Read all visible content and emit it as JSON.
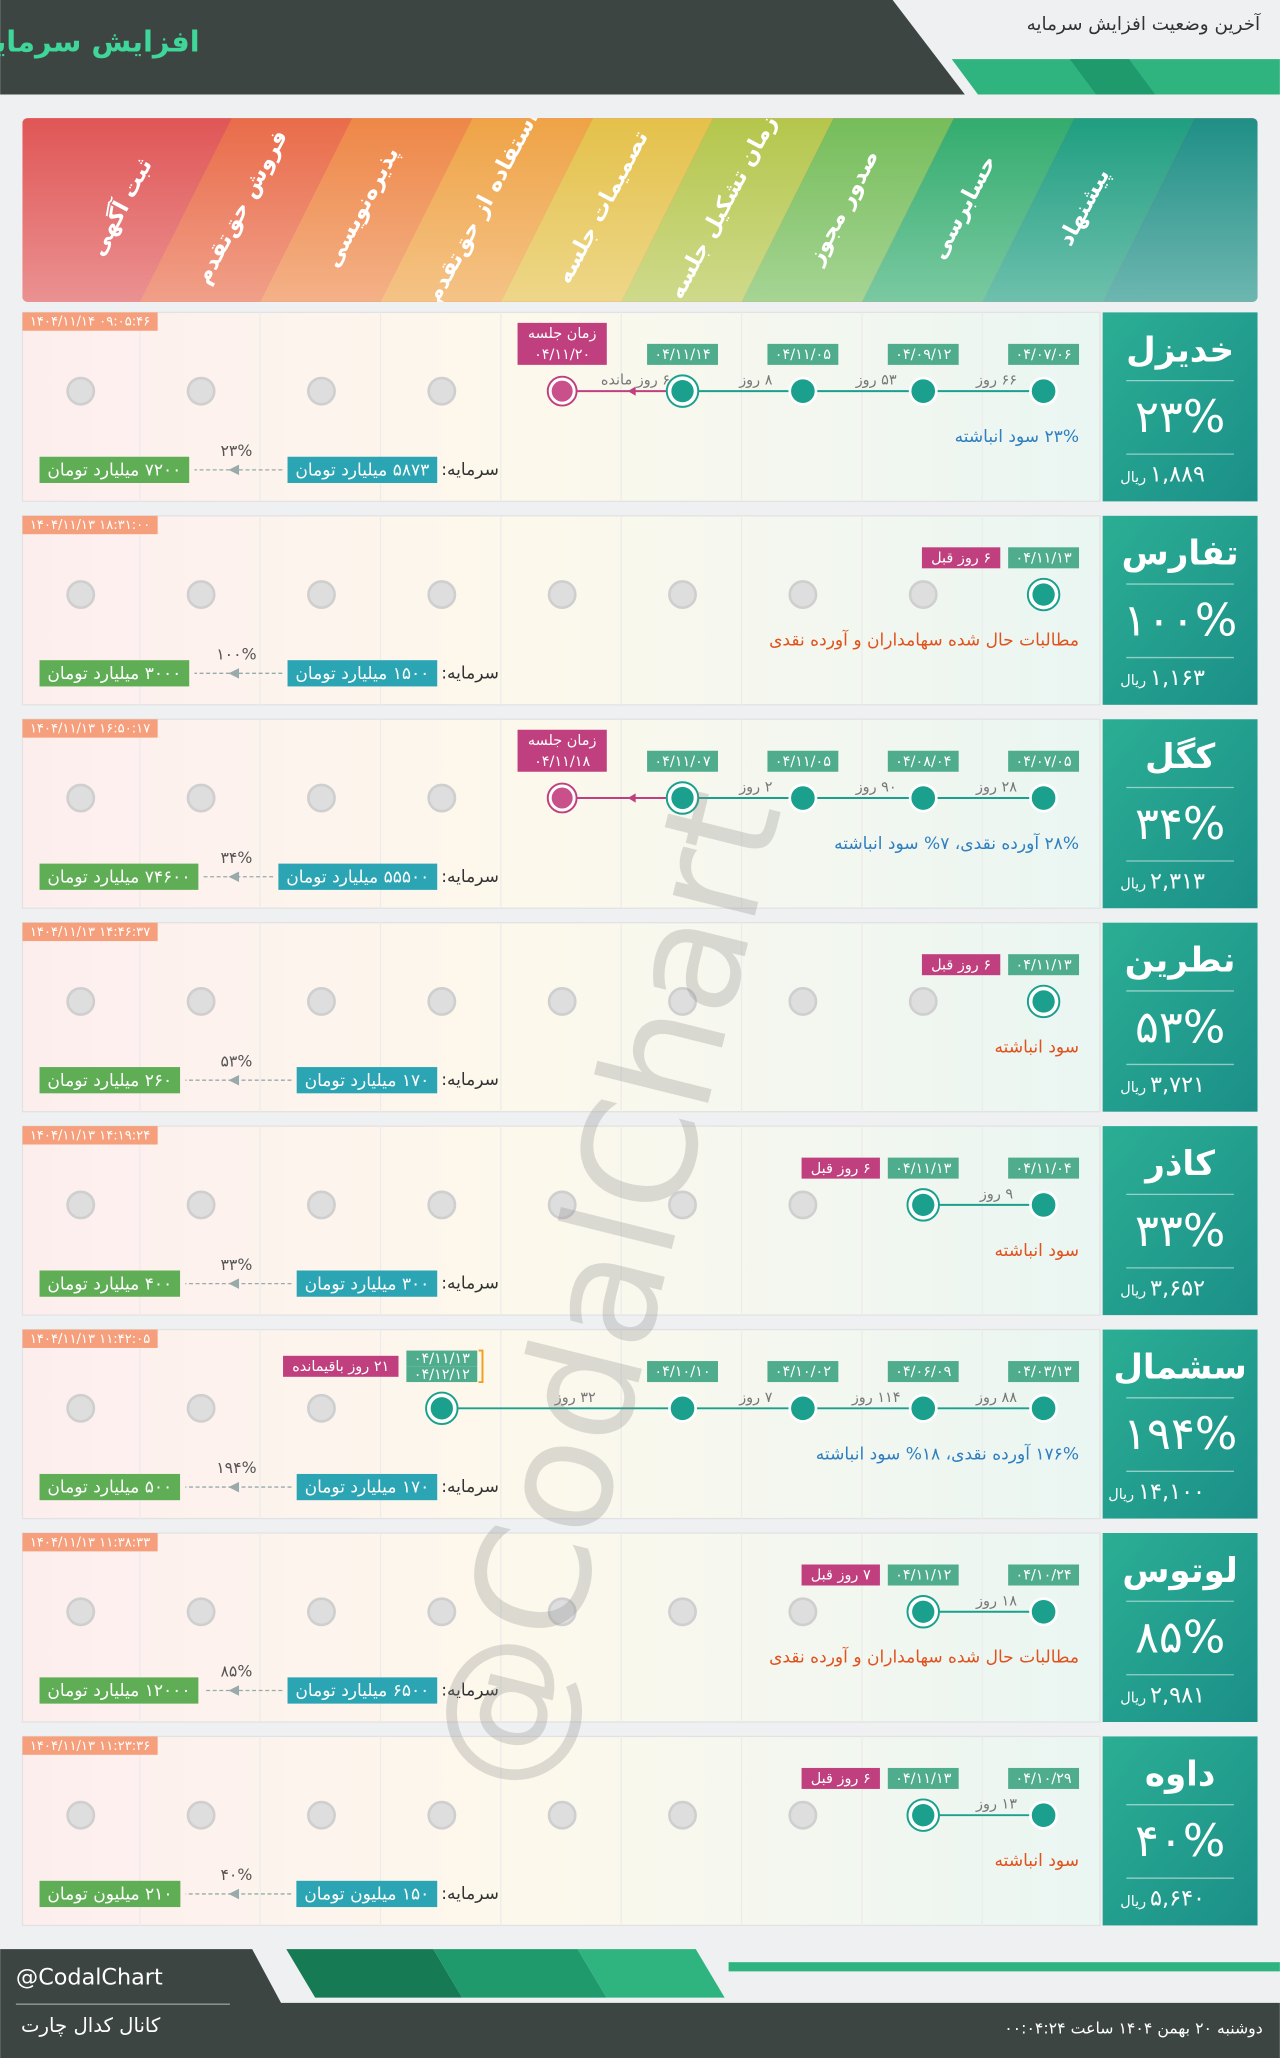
{
  "header": {
    "title": "افزایش سرمایه",
    "subtitle": "آخرین وضعیت افزایش سرمایه"
  },
  "stages": [
    "پیشنهاد",
    "حسابرسی",
    "صدور مجوز",
    "زمان تشکیل جلسه",
    "تصمیمات جلسه",
    "استفاده از حق‌تقدم",
    "پذیره‌نویسی",
    "فروش حق‌تقدم",
    "ثبت آگهی"
  ],
  "labels": {
    "capital": "سرمایه:",
    "currency": "ریال"
  },
  "companies": [
    {
      "name": "خدیزل",
      "percent": "۲۳%",
      "price": "۱,۸۸۹",
      "timestamp": "۱۴۰۴/۱۱/۱۴ ۰۹:۰۵:۴۶",
      "nodes": [
        {
          "dates": [
            "۰۴/۰۷/۰۶"
          ]
        },
        {
          "dates": [
            "۰۴/۰۹/۱۲"
          ],
          "days": "۶۶ روز"
        },
        {
          "dates": [
            "۰۴/۱۱/۰۵"
          ],
          "days": "۵۳ روز"
        },
        {
          "dates": [
            "۰۴/۱۱/۱۴"
          ],
          "days": "۸ روز"
        },
        {
          "pending": true,
          "days": "۶ روز مانده"
        }
      ],
      "tag": [
        "زمان جلسه",
        "۰۴/۱۱/۲۰"
      ],
      "note": "۲۳% سود انباشته",
      "note_color": "#2f7fc1",
      "capital": {
        "current": "۵۸۷۳ میلیارد تومان",
        "target": "۷۲۰۰ میلیارد تومان"
      }
    },
    {
      "name": "تفارس",
      "percent": "۱۰۰%",
      "price": "۱,۱۶۳",
      "timestamp": "۱۴۰۴/۱۱/۱۳ ۱۸:۳۱:۰۰",
      "nodes": [
        {
          "dates": [
            "۰۴/۱۱/۱۳"
          ]
        }
      ],
      "tag": [
        "۶ روز قبل"
      ],
      "note": "مطالبات حال شده سهامداران و آورده نقدی",
      "note_color": "#e0531f",
      "capital": {
        "current": "۱۵۰۰ میلیارد تومان",
        "target": "۳۰۰۰ میلیارد تومان"
      }
    },
    {
      "name": "کگل",
      "percent": "۳۴%",
      "price": "۲,۳۱۳",
      "timestamp": "۱۴۰۴/۱۱/۱۳ ۱۶:۵۰:۱۷",
      "nodes": [
        {
          "dates": [
            "۰۴/۰۷/۰۵"
          ]
        },
        {
          "dates": [
            "۰۴/۰۸/۰۴"
          ],
          "days": "۲۸ روز"
        },
        {
          "dates": [
            "۰۴/۱۱/۰۵"
          ],
          "days": "۹۰ روز"
        },
        {
          "dates": [
            "۰۴/۱۱/۰۷"
          ],
          "days": "۲ روز"
        },
        {
          "pending": true
        }
      ],
      "tag": [
        "زمان جلسه",
        "۰۴/۱۱/۱۸"
      ],
      "note": "۲۸% آورده نقدی، ۷% سود انباشته",
      "note_color": "#2f7fc1",
      "capital": {
        "current": "۵۵۵۰۰ میلیارد تومان",
        "target": "۷۴۶۰۰ میلیارد تومان"
      }
    },
    {
      "name": "نطرین",
      "percent": "۵۳%",
      "price": "۳,۷۲۱",
      "timestamp": "۱۴۰۴/۱۱/۱۳ ۱۴:۴۶:۳۷",
      "nodes": [
        {
          "dates": [
            "۰۴/۱۱/۱۳"
          ]
        }
      ],
      "tag": [
        "۶ روز قبل"
      ],
      "note": "سود انباشته",
      "note_color": "#e0531f",
      "capital": {
        "current": "۱۷۰ میلیارد تومان",
        "target": "۲۶۰ میلیارد تومان"
      }
    },
    {
      "name": "کاذر",
      "percent": "۳۳%",
      "price": "۳,۶۵۲",
      "timestamp": "۱۴۰۴/۱۱/۱۳ ۱۴:۱۹:۲۴",
      "nodes": [
        {
          "dates": [
            "۰۴/۱۱/۰۴"
          ]
        },
        {
          "dates": [
            "۰۴/۱۱/۱۳"
          ],
          "days": "۹ روز"
        }
      ],
      "tag": [
        "۶ روز قبل"
      ],
      "note": "سود انباشته",
      "note_color": "#e0531f",
      "capital": {
        "current": "۳۰۰ میلیارد تومان",
        "target": "۴۰۰ میلیارد تومان"
      }
    },
    {
      "name": "سشمال",
      "percent": "۱۹۴%",
      "price": "۱۴,۱۰۰",
      "timestamp": "۱۴۰۴/۱۱/۱۳ ۱۱:۴۲:۰۵",
      "nodes": [
        {
          "dates": [
            "۰۴/۰۳/۱۳"
          ]
        },
        {
          "dates": [
            "۰۴/۰۶/۰۹"
          ],
          "days": "۸۸ روز"
        },
        {
          "dates": [
            "۰۴/۱۰/۰۲"
          ],
          "days": "۱۱۴ روز"
        },
        {
          "dates": [
            "۰۴/۱۰/۱۰"
          ],
          "days": "۷ روز"
        },
        null,
        {
          "dates": [
            "۰۴/۱۱/۱۳",
            "۰۴/۱۲/۱۲"
          ],
          "days": "۳۲ روز"
        }
      ],
      "tag": [
        "۲۱ روز باقیمانده"
      ],
      "note": "۱۷۶% آورده نقدی، ۱۸% سود انباشته",
      "note_color": "#2f7fc1",
      "capital": {
        "current": "۱۷۰ میلیارد تومان",
        "target": "۵۰۰ میلیارد تومان"
      }
    },
    {
      "name": "لوتوس",
      "percent": "۸۵%",
      "price": "۲,۹۸۱",
      "timestamp": "۱۴۰۴/۱۱/۱۳ ۱۱:۳۸:۳۳",
      "nodes": [
        {
          "dates": [
            "۰۴/۱۰/۲۴"
          ]
        },
        {
          "dates": [
            "۰۴/۱۱/۱۲"
          ],
          "days": "۱۸ روز"
        }
      ],
      "tag": [
        "۷ روز قبل"
      ],
      "note": "مطالبات حال شده سهامداران و آورده نقدی",
      "note_color": "#e0531f",
      "capital": {
        "current": "۶۵۰۰ میلیارد تومان",
        "target": "۱۲۰۰۰ میلیارد تومان"
      }
    },
    {
      "name": "داوه",
      "percent": "۴۰%",
      "price": "۵,۶۴۰",
      "timestamp": "۱۴۰۴/۱۱/۱۳ ۱۱:۲۳:۳۶",
      "nodes": [
        {
          "dates": [
            "۰۴/۱۰/۲۹"
          ]
        },
        {
          "dates": [
            "۰۴/۱۱/۱۳"
          ],
          "days": "۱۳ روز"
        }
      ],
      "tag": [
        "۶ روز قبل"
      ],
      "note": "سود انباشته",
      "note_color": "#e0531f",
      "capital": {
        "current": "۱۵۰ میلیون تومان",
        "target": "۲۱۰ میلیون تومان"
      }
    }
  ],
  "watermark": "@CodalChart",
  "footer": {
    "handle": "@CodalChart",
    "channel": "کانال کدال چارت",
    "date": "دوشنبه ۲۰ بهمن ۱۴۰۴ ساعت ۰۰:۰۴:۲۴"
  }
}
